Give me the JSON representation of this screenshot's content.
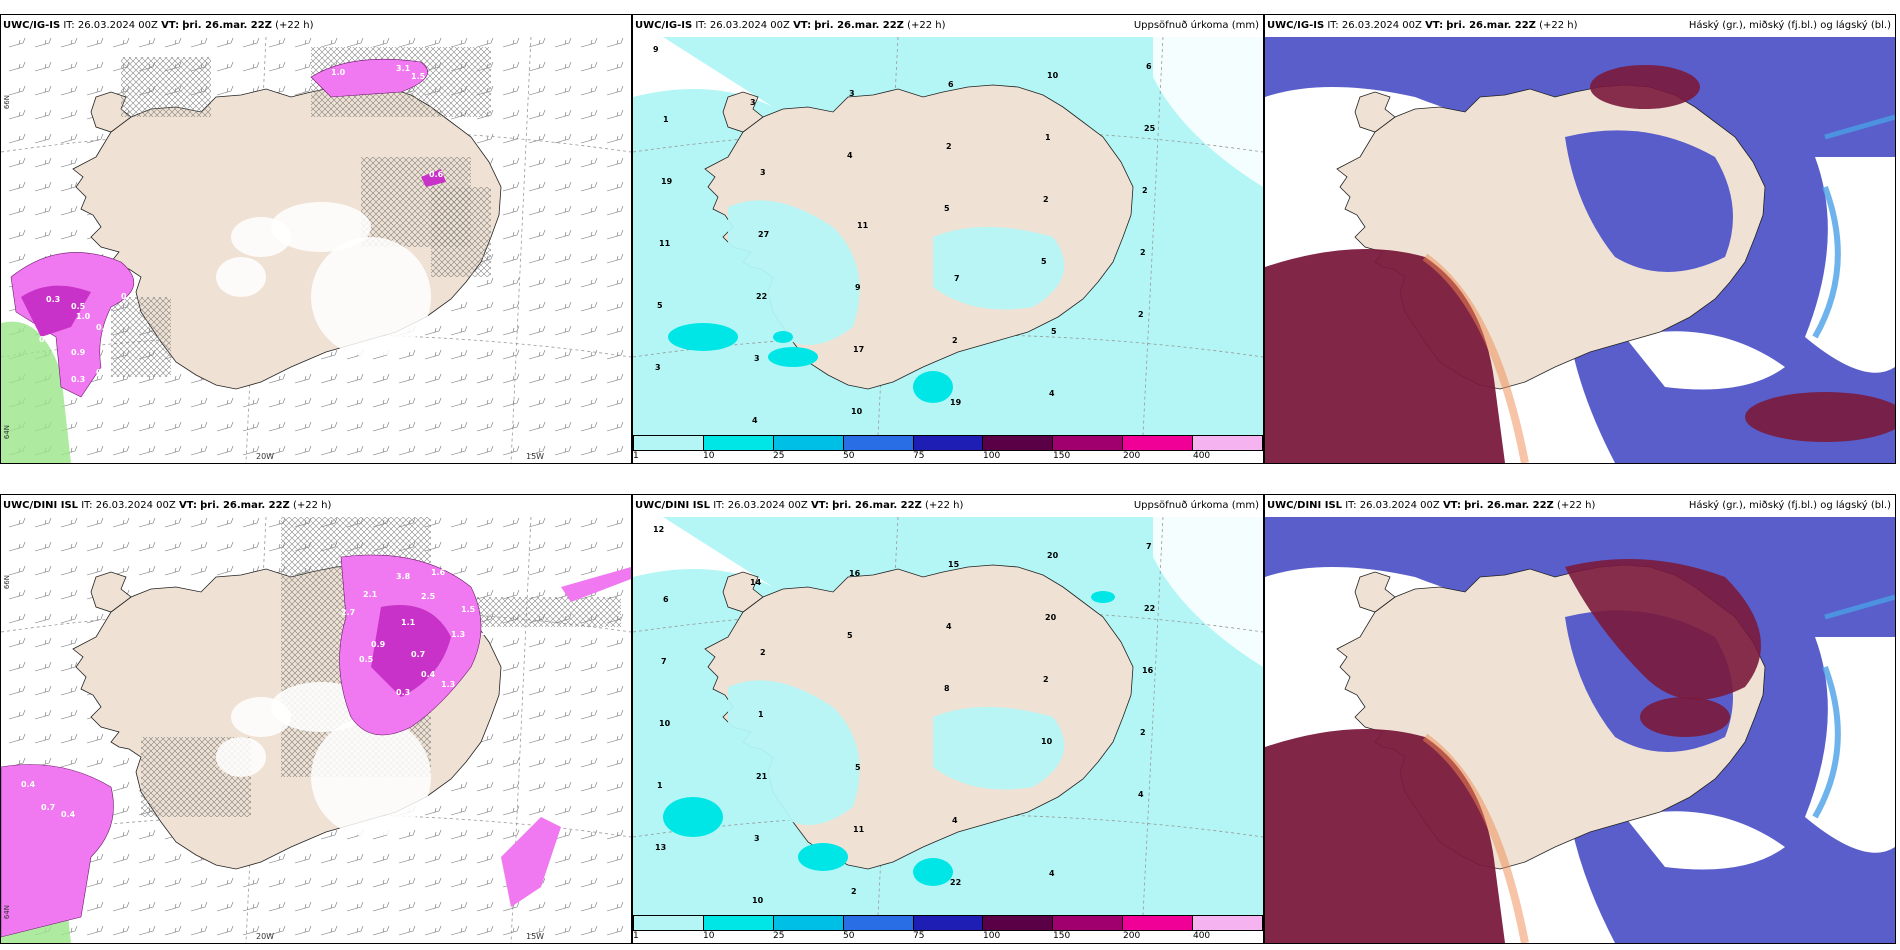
{
  "panels": [
    {
      "model": "UWC/IG-IS",
      "it": "IT: 26.03.2024 00Z",
      "vt_label": "VT:",
      "vt": "þri. 26.mar. 22Z",
      "lead": "(+22 h)",
      "subtitle": "",
      "type": "precip-wind"
    },
    {
      "model": "UWC/IG-IS",
      "it": "IT: 26.03.2024 00Z",
      "vt_label": "VT:",
      "vt": "þri. 26.mar. 22Z",
      "lead": "(+22 h)",
      "subtitle": "Uppsöfnuð úrkoma (mm)",
      "type": "accum"
    },
    {
      "model": "UWC/IG-IS",
      "it": "IT: 26.03.2024 00Z",
      "vt_label": "VT:",
      "vt": "þri. 26.mar. 22Z",
      "lead": "(+22 h)",
      "subtitle": "Háský (gr.), miðský (fj.bl.) og lágský (bl.)",
      "type": "cloud"
    },
    {
      "model": "UWC/DINI ISL",
      "it": "IT: 26.03.2024 00Z",
      "vt_label": "VT:",
      "vt": "þri. 26.mar. 22Z",
      "lead": "(+22 h)",
      "subtitle": "",
      "type": "precip-wind"
    },
    {
      "model": "UWC/DINI ISL",
      "it": "IT: 26.03.2024 00Z",
      "vt_label": "VT:",
      "vt": "þri. 26.mar. 22Z",
      "lead": "(+22 h)",
      "subtitle": "Uppsöfnuð úrkoma (mm)",
      "type": "accum"
    },
    {
      "model": "UWC/DINI ISL",
      "it": "IT: 26.03.2024 00Z",
      "vt_label": "VT:",
      "vt": "þri. 26.mar. 22Z",
      "lead": "(+22 h)",
      "subtitle": "Háský (gr.), miðský (fj.bl.) og lágský (bl.)",
      "type": "cloud"
    }
  ],
  "lon_labels": [
    "20W",
    "15W"
  ],
  "lat_labels": [
    "66N",
    "64N"
  ],
  "colorbar": {
    "ticks": [
      "1",
      "10",
      "25",
      "50",
      "75",
      "100",
      "150",
      "200",
      "400"
    ],
    "colors": [
      "#b4f5f5",
      "#00e6e6",
      "#00bfe6",
      "#2a6ee6",
      "#1e1eb4",
      "#5a0046",
      "#a0006e",
      "#f00096",
      "#f5b4f0"
    ]
  },
  "colors": {
    "land": "#efe2d4",
    "coast": "#222222",
    "accum_light": "#b4f5f5",
    "accum_mid": "#00e6e6",
    "precip_purple": "#c832c8",
    "precip_light": "#f078f0",
    "green": "#9ae68a",
    "cloud_high": "#7a1a3c",
    "cloud_mid": "#5055c8",
    "cloud_low": "#4aa0e6"
  },
  "accum_labels_top": [
    "9",
    "3",
    "4",
    "5",
    "5",
    "2",
    "3",
    "4",
    "3",
    "2",
    "2",
    "2",
    "5",
    "3",
    "10",
    "6",
    "1",
    "2",
    "11",
    "22",
    "17",
    "19",
    "10",
    "25",
    "19",
    "27",
    "9",
    "2",
    "4",
    "6",
    "1",
    "3",
    "11",
    "7",
    "5"
  ],
  "accum_labels_bottom": [
    "12",
    "14",
    "5",
    "8",
    "10",
    "4",
    "13",
    "10",
    "16",
    "4",
    "2",
    "2",
    "1",
    "3",
    "2",
    "15",
    "20",
    "16",
    "10",
    "21",
    "11",
    "22",
    "20",
    "22",
    "7",
    "1",
    "5",
    "4",
    "4",
    "7",
    "6",
    "2"
  ],
  "precip_labels_top": [
    "1.0",
    "3.1",
    "1.5",
    "0.6",
    "0.3",
    "0.5",
    "0.7",
    "1.0",
    "0.4",
    "0.9",
    "0.6",
    "0.3",
    "0.2"
  ],
  "precip_labels_bottom": [
    "3.8",
    "1.6",
    "2.1",
    "2.5",
    "1.5",
    "1.1",
    "2.7",
    "1.3",
    "2.8",
    "0.9",
    "0.5",
    "0.7",
    "0.4",
    "1.3",
    "0.3",
    "0.4",
    "0.7",
    "0.4"
  ]
}
